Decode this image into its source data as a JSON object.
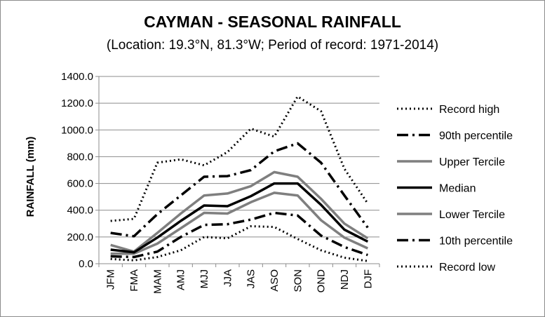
{
  "chart_data": {
    "type": "line",
    "title": "CAYMAN - SEASONAL RAINFALL",
    "subtitle": "(Location: 19.3°N, 81.3°W; Period of record: 1971-2014)",
    "ylabel": "RAINFALL (mm)",
    "xlabel": "",
    "ylim": [
      0,
      1400
    ],
    "yticks": [
      "0.0",
      "200.0",
      "400.0",
      "600.0",
      "800.0",
      "1000.0",
      "1200.0",
      "1400.0"
    ],
    "categories": [
      "JFM",
      "FMA",
      "MAM",
      "AMJ",
      "MJJ",
      "JJA",
      "JAS",
      "ASO",
      "SON",
      "OND",
      "NDJ",
      "DJF"
    ],
    "grid": "horizontal",
    "legend": "right",
    "series": [
      {
        "name": "Record high",
        "style": "dotted",
        "color": "#000000",
        "values": [
          320,
          335,
          755,
          780,
          735,
          835,
          1010,
          950,
          1250,
          1140,
          710,
          450
        ]
      },
      {
        "name": "90th percentile",
        "style": "dashdot",
        "color": "#000000",
        "values": [
          230,
          205,
          370,
          510,
          650,
          655,
          700,
          840,
          900,
          755,
          510,
          270
        ]
      },
      {
        "name": "Upper Tercile",
        "style": "solid",
        "color": "#7f7f7f",
        "values": [
          140,
          90,
          230,
          375,
          510,
          525,
          580,
          685,
          650,
          485,
          300,
          190
        ]
      },
      {
        "name": "Median",
        "style": "solid",
        "color": "#000000",
        "values": [
          105,
          85,
          195,
          320,
          435,
          430,
          505,
          600,
          600,
          440,
          255,
          165
        ]
      },
      {
        "name": "Lower Tercile",
        "style": "solid",
        "color": "#7f7f7f",
        "values": [
          75,
          75,
          150,
          265,
          380,
          375,
          460,
          530,
          510,
          325,
          195,
          115
        ]
      },
      {
        "name": "10th percentile",
        "style": "dashdot",
        "color": "#000000",
        "values": [
          55,
          50,
          90,
          200,
          290,
          295,
          330,
          380,
          360,
          210,
          125,
          65
        ]
      },
      {
        "name": "Record low",
        "style": "dotted",
        "color": "#000000",
        "values": [
          35,
          25,
          50,
          100,
          200,
          190,
          280,
          275,
          185,
          100,
          45,
          20
        ]
      }
    ]
  }
}
